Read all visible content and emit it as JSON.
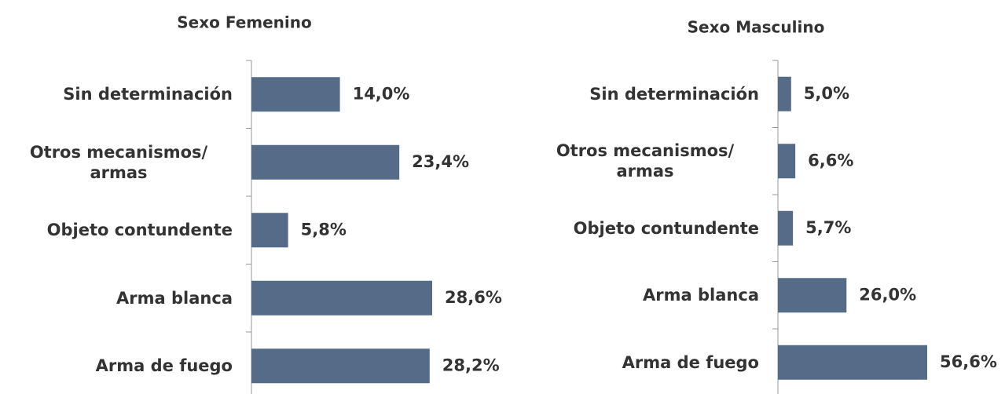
{
  "chart_data": [
    {
      "type": "bar",
      "orientation": "horizontal",
      "title": "Sexo Femenino",
      "categories": [
        "Sin determinación",
        "Otros mecanismos/ armas",
        "Objeto contundente",
        "Arma blanca",
        "Arma de fuego"
      ],
      "values": [
        14.0,
        23.4,
        5.8,
        28.6,
        28.2
      ],
      "value_labels": [
        "14,0%",
        "23,4%",
        "5,8%",
        "28,6%",
        "28,2%"
      ],
      "color": "#556b88"
    },
    {
      "type": "bar",
      "orientation": "horizontal",
      "title": "Sexo Masculino",
      "categories": [
        "Sin determinación",
        "Otros mecanismos/ armas",
        "Objeto contundente",
        "Arma blanca",
        "Arma de fuego"
      ],
      "values": [
        5.0,
        6.6,
        5.7,
        26.0,
        56.6
      ],
      "value_labels": [
        "5,0%",
        "6,6%",
        "5,7%",
        "26,0%",
        "56,6%"
      ],
      "color": "#556b88"
    }
  ]
}
